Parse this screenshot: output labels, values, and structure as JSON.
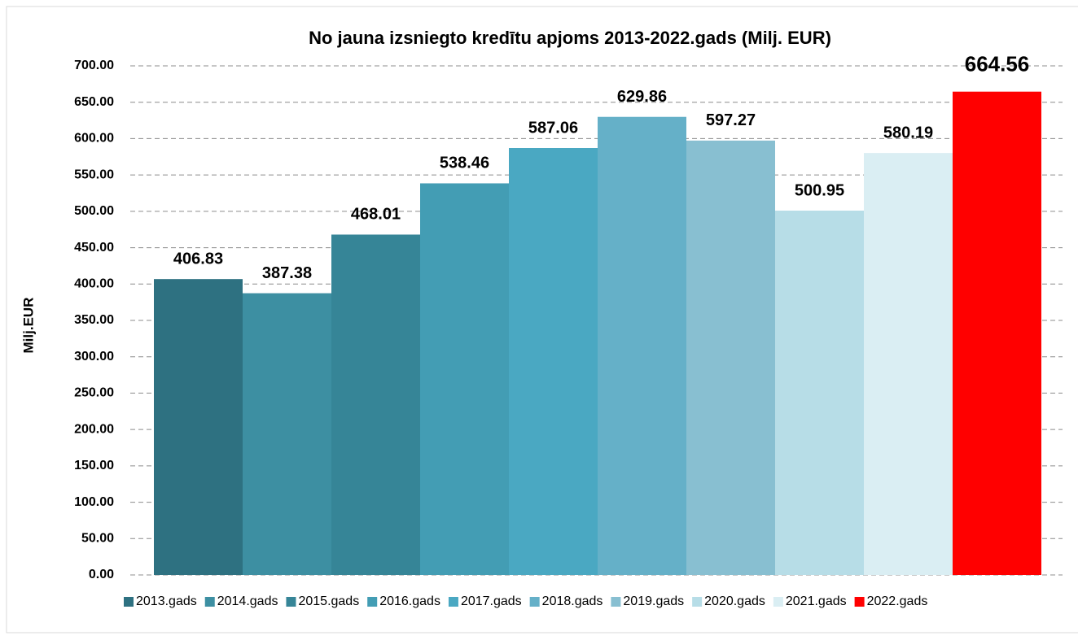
{
  "chart_data": {
    "type": "bar",
    "title": "No jauna izsniegto kredītu apjoms 2013-2022.gads (Milj. EUR)",
    "y_label": "Milj.EUR",
    "series": [
      {
        "name": "2013.gads",
        "color": "#2e7181",
        "values": [
          406.83
        ]
      },
      {
        "name": "2014.gads",
        "color": "#3d8fa2",
        "values": [
          387.38
        ]
      },
      {
        "name": "2015.gads",
        "color": "#368597",
        "values": [
          468.01
        ]
      },
      {
        "name": "2016.gads",
        "color": "#439db4",
        "values": [
          538.46
        ]
      },
      {
        "name": "2017.gads",
        "color": "#4aa8c2",
        "values": [
          587.06
        ]
      },
      {
        "name": "2018.gads",
        "color": "#65b0c8",
        "values": [
          629.86
        ]
      },
      {
        "name": "2019.gads",
        "color": "#88bfd1",
        "values": [
          597.27
        ]
      },
      {
        "name": "2020.gads",
        "color": "#b7dde7",
        "values": [
          500.95
        ]
      },
      {
        "name": "2021.gads",
        "color": "#daeef3",
        "values": [
          580.19
        ]
      },
      {
        "name": "2022.gads",
        "color": "#ff0000",
        "values": [
          664.56
        ]
      }
    ],
    "ylim": [
      0,
      700
    ],
    "yticks": [
      {
        "value": 0,
        "label": "0.00"
      },
      {
        "value": 50,
        "label": "50.00"
      },
      {
        "value": 100,
        "label": "100.00"
      },
      {
        "value": 150,
        "label": "150.00"
      },
      {
        "value": 200,
        "label": "200.00"
      },
      {
        "value": 250,
        "label": "250.00"
      },
      {
        "value": 300,
        "label": "300.00"
      },
      {
        "value": 350,
        "label": "350.00"
      },
      {
        "value": 400,
        "label": "400.00"
      },
      {
        "value": 450,
        "label": "450.00"
      },
      {
        "value": 500,
        "label": "500.00"
      },
      {
        "value": 550,
        "label": "550.00"
      },
      {
        "value": 600,
        "label": "600.00"
      },
      {
        "value": 650,
        "label": "650.00"
      },
      {
        "value": 700,
        "label": "700.00"
      }
    ],
    "grid": true,
    "legend": "bottom"
  }
}
